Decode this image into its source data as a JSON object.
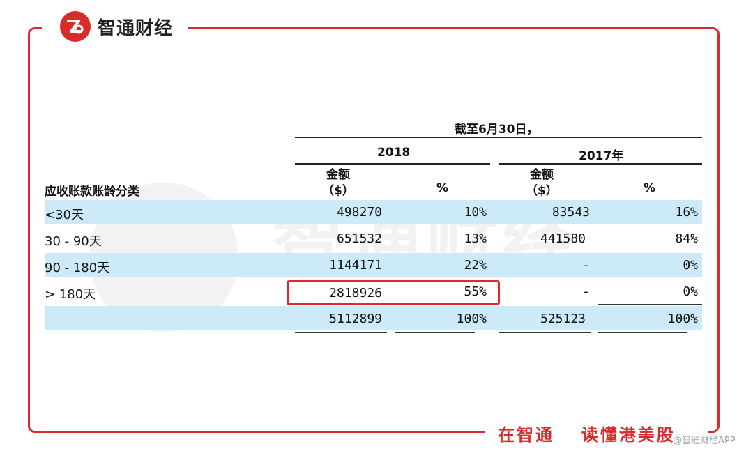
{
  "brand": {
    "logo_text": "智通财经",
    "slogan_part1": "在智通",
    "slogan_part2": "读懂港美股",
    "app_tag": "@智通财经APP",
    "watermark_text": "智通财经",
    "accent_color": "#d92b2b",
    "row_highlight_color": "#cdeaf8"
  },
  "table": {
    "period_header": "截至6月30日，",
    "year_2018": "2018",
    "year_2017": "2017年",
    "amount_label_line1": "金额",
    "amount_label_line2": "（$）",
    "percent_label": "%",
    "category_header": "应收账款账龄分类",
    "rows": [
      {
        "label": "<30天",
        "amt_2018": "498270",
        "pct_2018": "10%",
        "amt_2017": "83543",
        "pct_2017": "16%"
      },
      {
        "label": "30 - 90天",
        "amt_2018": "651532",
        "pct_2018": "13%",
        "amt_2017": "441580",
        "pct_2017": "84%"
      },
      {
        "label": "90 - 180天",
        "amt_2018": "1144171",
        "pct_2018": "22%",
        "amt_2017": "-",
        "pct_2017": "0%"
      },
      {
        "label": "> 180天",
        "amt_2018": "2818926",
        "pct_2018": "55%",
        "amt_2017": "-",
        "pct_2017": "0%"
      },
      {
        "label": "",
        "amt_2018": "5112899",
        "pct_2018": "100%",
        "amt_2017": "525123",
        "pct_2017": "100%"
      }
    ]
  }
}
